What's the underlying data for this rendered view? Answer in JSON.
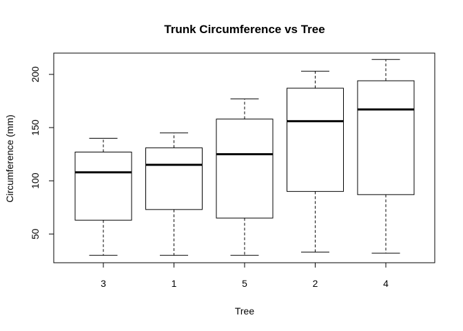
{
  "chart_data": {
    "type": "boxplot",
    "title": "Trunk Circumference vs Tree",
    "xlabel": "Tree",
    "ylabel": "Circumference (mm)",
    "ylim": [
      23,
      220
    ],
    "yticks": [
      50,
      100,
      150,
      200
    ],
    "categories": [
      "3",
      "1",
      "5",
      "2",
      "4"
    ],
    "boxes": [
      {
        "category": "3",
        "min": 30,
        "q1": 63,
        "median": 108,
        "q3": 127,
        "max": 140
      },
      {
        "category": "1",
        "min": 30,
        "q1": 73,
        "median": 115,
        "q3": 131,
        "max": 145
      },
      {
        "category": "5",
        "min": 30,
        "q1": 65,
        "median": 125,
        "q3": 158,
        "max": 177
      },
      {
        "category": "2",
        "min": 33,
        "q1": 90,
        "median": 156,
        "q3": 187,
        "max": 203
      },
      {
        "category": "4",
        "min": 32,
        "q1": 87,
        "median": 167,
        "q3": 194,
        "max": 214
      }
    ],
    "grid": false,
    "legend": "none"
  }
}
